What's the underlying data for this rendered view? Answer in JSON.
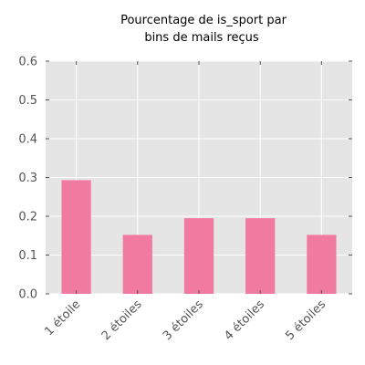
{
  "chart_data": {
    "type": "bar",
    "title_lines": [
      "Pourcentage de is_sport par",
      "bins de mails reçus"
    ],
    "categories": [
      "1 étoile",
      "2 étoiles",
      "3 étoiles",
      "4 étoiles",
      "5 étoiles"
    ],
    "values": [
      0.293,
      0.152,
      0.195,
      0.195,
      0.152
    ],
    "ylim": [
      0,
      0.6
    ],
    "yticks": [
      0.0,
      0.1,
      0.2,
      0.3,
      0.4,
      0.5,
      0.6
    ],
    "ytick_labels": [
      "0.0",
      "0.1",
      "0.2",
      "0.3",
      "0.4",
      "0.5",
      "0.6"
    ],
    "xlabel": "",
    "ylabel": "",
    "grid": true,
    "legend": "none",
    "colors": {
      "bar": "#f07aa0",
      "plot_background": "#e5e5e5",
      "grid": "#ffffff",
      "tick_label": "#555555"
    }
  }
}
